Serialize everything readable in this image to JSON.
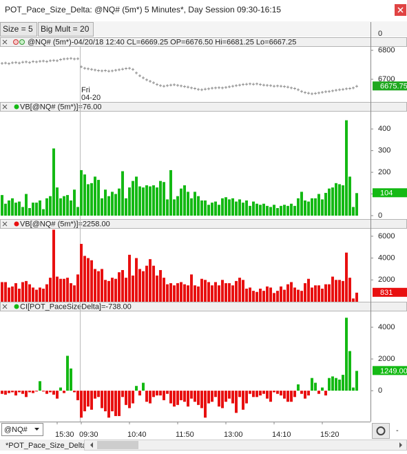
{
  "window": {
    "title": "POT_Pace_Size_Delta: @NQ# (5m*) 5 Minutes*, Day Session 09:30-16:15",
    "buttons": [
      "Size = 5",
      "Big Mult = 20"
    ],
    "toolbar_tick": 0,
    "symbol": "@NQ#",
    "tab": "*POT_Pace_Size_Delta",
    "corner_label": "-"
  },
  "chart_data": [
    {
      "type": "marker",
      "header": "@NQ# (5m*)-04/20/18 12:40 CL=6669.25 OP=6676.50 Hi=6681.25 Lo=6667.25",
      "session_label": [
        "Fri",
        "04-20"
      ],
      "color": "#8a8a8a",
      "last_box_color": "#1fa81f",
      "values": [
        6755,
        6756,
        6754,
        6757,
        6758,
        6756,
        6759,
        6760,
        6758,
        6761,
        6760,
        6762,
        6763,
        6761,
        6764,
        6765,
        6764,
        6768,
        6770,
        6771,
        6772,
        6770,
        6771,
        6743,
        6738,
        6736,
        6734,
        6732,
        6730,
        6729,
        6730,
        6728,
        6729,
        6731,
        6733,
        6735,
        6737,
        6738,
        6734,
        6722,
        6712,
        6705,
        6698,
        6693,
        6688,
        6682,
        6678,
        6676,
        6678,
        6680,
        6681,
        6679,
        6677,
        6675,
        6673,
        6670,
        6668,
        6665,
        6664,
        6666,
        6667,
        6669.25,
        6670,
        6671,
        6670,
        6672,
        6674,
        6676,
        6678,
        6680,
        6682,
        6683,
        6684,
        6683,
        6684,
        6682,
        6680,
        6679,
        6678,
        6676,
        6677,
        6676,
        6675,
        6673,
        6670,
        6668,
        6664,
        6658,
        6654,
        6652,
        6650,
        6651,
        6653,
        6655,
        6657,
        6658,
        6660,
        6662,
        6664,
        6665,
        6667,
        6668,
        6670,
        6675.75
      ],
      "ylim": [
        6624,
        6812
      ],
      "yticks": [
        6700,
        6800
      ],
      "grid": false
    },
    {
      "type": "bar",
      "header": "VB[@NQ# (5m*)]=76.00",
      "color": "#14b914",
      "last_box_color": "#14b914",
      "values": [
        95,
        55,
        70,
        80,
        60,
        65,
        40,
        100,
        35,
        60,
        60,
        70,
        30,
        80,
        90,
        310,
        130,
        80,
        90,
        95,
        70,
        120,
        40,
        210,
        190,
        145,
        150,
        180,
        165,
        80,
        120,
        90,
        110,
        100,
        125,
        205,
        80,
        130,
        160,
        180,
        135,
        130,
        140,
        135,
        140,
        130,
        160,
        155,
        75,
        210,
        75,
        90,
        125,
        140,
        110,
        80,
        110,
        90,
        70,
        70,
        50,
        60,
        65,
        50,
        80,
        85,
        75,
        80,
        65,
        75,
        60,
        70,
        45,
        65,
        55,
        50,
        55,
        45,
        40,
        50,
        35,
        45,
        50,
        45,
        55,
        45,
        80,
        110,
        70,
        65,
        80,
        80,
        100,
        75,
        105,
        125,
        130,
        150,
        145,
        140,
        440,
        180,
        40,
        104
      ],
      "ylim": [
        0,
        480
      ],
      "yticks": [
        0,
        100,
        200,
        300,
        400
      ],
      "grid": false
    },
    {
      "type": "bar",
      "header": "VB[@NQ# (5m*)]=2258.00",
      "color": "#e81010",
      "last_box_color": "#e81010",
      "values": [
        1800,
        1800,
        1300,
        1400,
        1700,
        1200,
        1800,
        1900,
        1600,
        1300,
        1100,
        1300,
        1200,
        1600,
        2200,
        6600,
        2300,
        2100,
        2100,
        2200,
        1700,
        1500,
        2500,
        5300,
        4200,
        4000,
        3800,
        3000,
        2800,
        3000,
        2000,
        1900,
        2200,
        2100,
        2700,
        2900,
        2200,
        4300,
        2400,
        4000,
        3000,
        2800,
        3300,
        3900,
        3300,
        2400,
        2900,
        2200,
        1600,
        1700,
        1500,
        1700,
        1800,
        1600,
        1500,
        2500,
        1500,
        1400,
        2100,
        2000,
        1800,
        1500,
        1800,
        1500,
        2000,
        1700,
        1700,
        1500,
        1900,
        2200,
        2000,
        1200,
        1300,
        1000,
        900,
        1200,
        1000,
        1400,
        1300,
        800,
        1000,
        1400,
        1100,
        1600,
        1800,
        1300,
        1100,
        1000,
        1700,
        2100,
        1300,
        1500,
        1500,
        1200,
        1600,
        1600,
        2300,
        2000,
        2000,
        1900,
        4500,
        2200,
        300,
        831
      ],
      "ylim": [
        0,
        6750
      ],
      "yticks": [
        2000,
        4000,
        6000
      ],
      "grid": false
    },
    {
      "type": "bar",
      "header": "CI[POT_PaceSizeDelta]=-738.00",
      "color": "#14b914",
      "negative_color": "#e81010",
      "last_box_color": "#14b914",
      "last_label": "1249.00",
      "categories": [
        null,
        null,
        null,
        null,
        null,
        null,
        null,
        null,
        null,
        null,
        null,
        null,
        null,
        null,
        null,
        null,
        "15:30",
        null,
        null,
        null,
        null,
        null,
        null,
        "09:30",
        null,
        null,
        null,
        null,
        null,
        null,
        null,
        null,
        null,
        null,
        null,
        null,
        null,
        "10:40",
        null,
        null,
        null,
        null,
        null,
        null,
        null,
        null,
        null,
        null,
        null,
        null,
        null,
        "11:50",
        null,
        null,
        null,
        null,
        null,
        null,
        null,
        null,
        null,
        null,
        null,
        null,
        null,
        "13:00",
        null,
        null,
        null,
        null,
        null,
        null,
        null,
        null,
        null,
        null,
        null,
        null,
        null,
        "14:10",
        null,
        null,
        null,
        null,
        null,
        null,
        null,
        null,
        null,
        null,
        null,
        null,
        null,
        "15:20",
        null,
        null,
        null,
        null,
        null,
        null,
        null,
        null,
        null,
        null
      ],
      "values": [
        -200,
        -250,
        -150,
        -100,
        -300,
        -100,
        -200,
        -400,
        -100,
        -150,
        -50,
        600,
        -50,
        -200,
        -100,
        -250,
        -500,
        200,
        -150,
        2200,
        1400,
        -100,
        -600,
        -1700,
        -1300,
        -1000,
        -1200,
        -500,
        -400,
        -1100,
        -1300,
        -1700,
        -1300,
        -1600,
        -1600,
        -400,
        -900,
        -1100,
        -800,
        300,
        -300,
        500,
        -700,
        -800,
        -400,
        -300,
        -300,
        -600,
        -200,
        -800,
        -1000,
        -900,
        -600,
        -700,
        -1000,
        -500,
        -700,
        -900,
        -1100,
        -1700,
        -800,
        -700,
        -400,
        -1000,
        -1100,
        -700,
        -500,
        -800,
        -1400,
        -400,
        -1200,
        -800,
        -200,
        -400,
        -400,
        -300,
        -200,
        -500,
        -700,
        -100,
        -200,
        -300,
        -500,
        -700,
        -700,
        -400,
        400,
        -200,
        -500,
        -300,
        800,
        500,
        -200,
        200,
        -300,
        800,
        900,
        800,
        700,
        1000,
        4600,
        2500,
        200,
        1249
      ],
      "ylim": [
        -1950,
        5000
      ],
      "yticks": [
        0,
        2000,
        4000
      ],
      "grid": false
    }
  ]
}
